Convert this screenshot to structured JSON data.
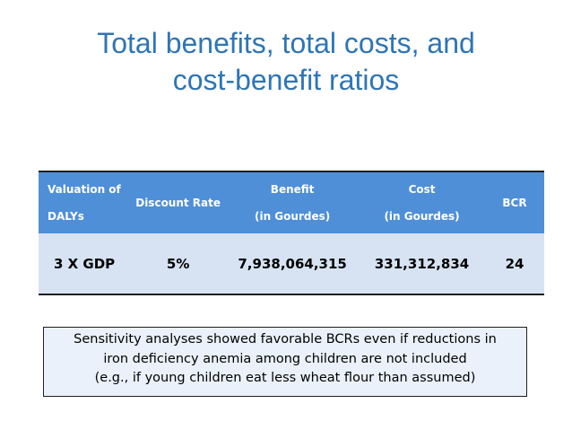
{
  "title": {
    "line1": "Total benefits, total costs, and",
    "line2": "cost-benefit ratios"
  },
  "table": {
    "headers": [
      {
        "line1": "Valuation of",
        "line2": "DALYs"
      },
      {
        "line1": "Discount Rate",
        "line2": ""
      },
      {
        "line1": "Benefit",
        "line2": "(in Gourdes)"
      },
      {
        "line1": "Cost",
        "line2": "(in Gourdes)"
      },
      {
        "line1": "BCR",
        "line2": ""
      }
    ],
    "rows": [
      [
        "3 X GDP",
        "5%",
        "7,938,064,315",
        "331,312,834",
        "24"
      ]
    ]
  },
  "note": {
    "line1": "Sensitivity analyses showed favorable BCRs even if reductions in",
    "line2": "iron deficiency anemia among children are not included",
    "line3": "(e.g., if young children eat less wheat flour than assumed)"
  },
  "colors": {
    "title": "#2e75b6",
    "header_bg": "#4f8fd8",
    "row_bg": "#d7e3f2",
    "note_bg": "#eaf1fa"
  }
}
